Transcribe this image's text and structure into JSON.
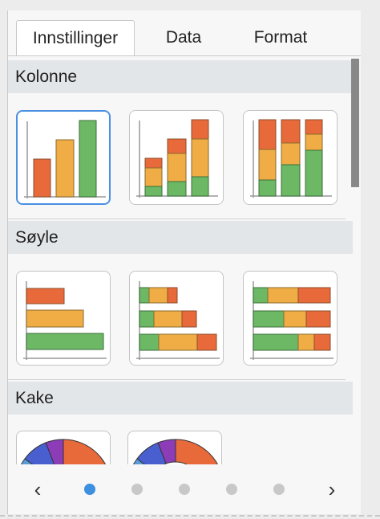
{
  "tabs": [
    {
      "label": "Innstillinger",
      "active": true
    },
    {
      "label": "Data",
      "active": false
    },
    {
      "label": "Format",
      "active": false
    }
  ],
  "sections": [
    {
      "title": "Kolonne",
      "chart_types": [
        "clustered-column-icon",
        "stacked-column-icon",
        "percent-stacked-column-icon"
      ],
      "selected_index": 0
    },
    {
      "title": "Søyle",
      "chart_types": [
        "clustered-bar-icon",
        "stacked-bar-icon",
        "percent-stacked-bar-icon"
      ]
    },
    {
      "title": "Kake",
      "chart_types": [
        "pie-icon",
        "donut-icon"
      ]
    }
  ],
  "pager": {
    "prev_label": "‹",
    "next_label": "›",
    "page_count": 5,
    "current_page": 1
  },
  "colors": {
    "orange": "#e8693a",
    "yellow": "#f0ad46",
    "green": "#6cb865",
    "blue": "#4a5fcf",
    "purple": "#8d3cb8",
    "light_blue": "#5b9bd6",
    "selected_border": "#4a90e2",
    "active_dot": "#3d8fe0"
  }
}
